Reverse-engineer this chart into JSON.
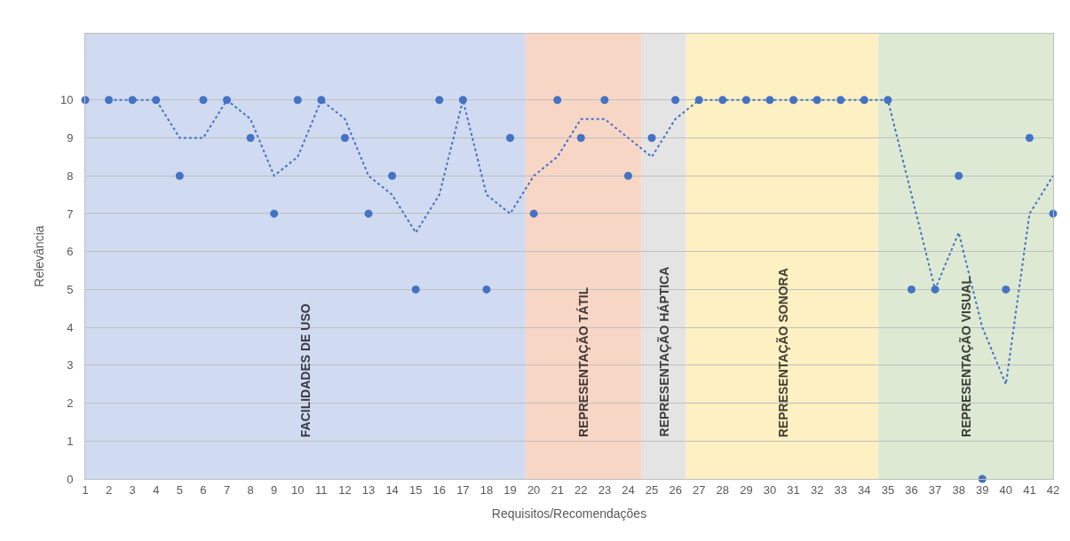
{
  "chart_data": {
    "type": "scatter",
    "xlabel": "Requisitos/Recomendações",
    "ylabel": "Relevância",
    "x": [
      1,
      2,
      3,
      4,
      5,
      6,
      7,
      8,
      9,
      10,
      11,
      12,
      13,
      14,
      15,
      16,
      17,
      18,
      19,
      20,
      21,
      22,
      23,
      24,
      25,
      26,
      27,
      28,
      29,
      30,
      31,
      32,
      33,
      34,
      35,
      36,
      37,
      38,
      39,
      40,
      41,
      42
    ],
    "series": [
      {
        "color": "#4472c4",
        "marker": "circle",
        "values": [
          10,
          10,
          10,
          10,
          8,
          10,
          10,
          9,
          7,
          10,
          10,
          9,
          7,
          8,
          5,
          10,
          10,
          5,
          9,
          7,
          10,
          9,
          10,
          8,
          9,
          10,
          10,
          10,
          10,
          10,
          10,
          10,
          10,
          10,
          10,
          5,
          5,
          8,
          0,
          5,
          9,
          7
        ]
      },
      {
        "type": "line",
        "color": "#4472c4",
        "line_style": "dotted",
        "marker": "none",
        "x": [
          2,
          3,
          4,
          5,
          6,
          7,
          8,
          9,
          10,
          11,
          12,
          13,
          14,
          15,
          16,
          17,
          18,
          19,
          20,
          21,
          22,
          23,
          24,
          25,
          26,
          27,
          28,
          29,
          30,
          31,
          32,
          33,
          34,
          35,
          36,
          37,
          38,
          39,
          40,
          41,
          42
        ],
        "values": [
          10,
          10,
          10,
          9,
          9,
          10,
          9.5,
          8,
          8.5,
          10,
          9.5,
          8,
          7.5,
          6.5,
          7.5,
          10,
          7.5,
          7,
          8,
          8.5,
          9.5,
          9.5,
          9,
          8.5,
          9.5,
          10,
          10,
          10,
          10,
          10,
          10,
          10,
          10,
          10,
          7.5,
          5,
          6.5,
          4,
          2.5,
          7,
          8
        ]
      }
    ],
    "xlim": [
      1,
      42
    ],
    "xticks": [
      1,
      2,
      3,
      4,
      5,
      6,
      7,
      8,
      9,
      10,
      11,
      12,
      13,
      14,
      15,
      16,
      17,
      18,
      19,
      20,
      21,
      22,
      23,
      24,
      25,
      26,
      27,
      28,
      29,
      30,
      31,
      32,
      33,
      34,
      35,
      36,
      37,
      38,
      39,
      40,
      41,
      42
    ],
    "ylim": [
      0,
      11.75
    ],
    "yticks": [
      0,
      1,
      2,
      3,
      4,
      5,
      6,
      7,
      8,
      9,
      10
    ],
    "grid": "y",
    "bands": [
      {
        "axis": "x",
        "from": 1,
        "to": 19.65,
        "label": "FACILIDADES DE USO",
        "color": "#d0daf0"
      },
      {
        "axis": "x",
        "from": 19.65,
        "to": 24.57,
        "label": "REPRESENTAÇÃO TÁTIL",
        "color": "#f8d6c6"
      },
      {
        "axis": "x",
        "from": 24.57,
        "to": 26.45,
        "label": "REPRESENTAÇÃO HÁPTICA",
        "color": "#e4e4e4"
      },
      {
        "axis": "x",
        "from": 26.45,
        "to": 34.6,
        "label": "REPRESENTAÇÃO SONORA",
        "color": "#fdf0c2"
      },
      {
        "axis": "x",
        "from": 34.6,
        "to": 42,
        "label": "REPRESENTAÇÃO VISUAL",
        "color": "#dde9d3"
      }
    ]
  }
}
